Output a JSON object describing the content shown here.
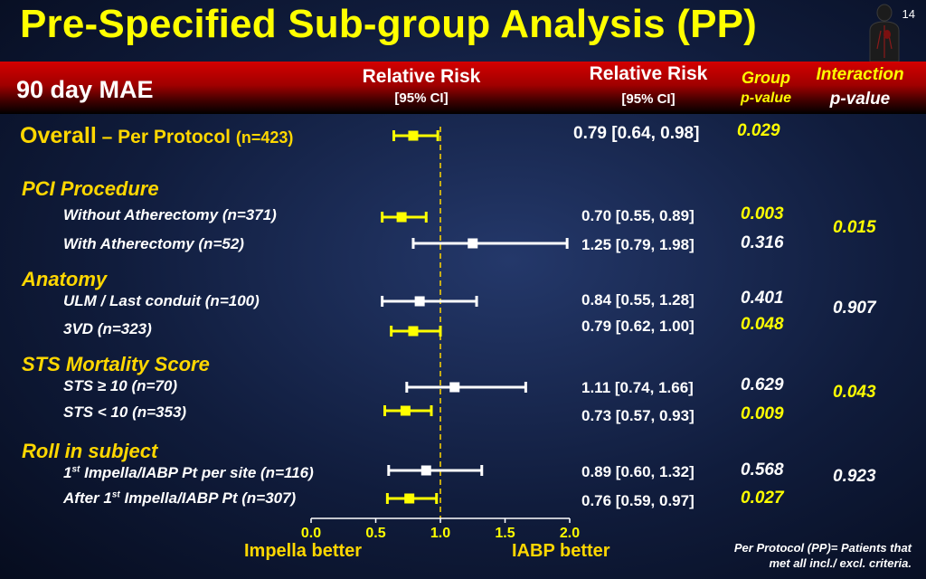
{
  "slide": {
    "title": "Pre-Specified Sub-group Analysis (PP)",
    "slide_number": "14",
    "metric_label": "90 day MAE",
    "footnote_line1": "Per Protocol (PP)= Patients that",
    "footnote_line2": "met all incl./ excl. criteria."
  },
  "header": {
    "rr_plot_title": "Relative Risk",
    "rr_plot_ci": "[95% CI]",
    "rr_col_title": "Relative Risk",
    "rr_col_ci": "[95% CI]",
    "group_title": "Group",
    "group_sub": "p-value",
    "interaction_title": "Interaction",
    "interaction_sub": "p-value"
  },
  "overall": {
    "label_main": "Overall",
    "label_dash": " – Per Protocol ",
    "label_n": "(n=423)",
    "rr_text": "0.79 [0.64, 0.98]",
    "group_p": "0.029"
  },
  "sections": [
    {
      "title": "PCI Procedure",
      "interaction_p": "0.015",
      "interaction_sig": true
    },
    {
      "title": "Anatomy",
      "interaction_p": "0.907",
      "interaction_sig": false
    },
    {
      "title": "STS Mortality Score",
      "interaction_p": "0.043",
      "interaction_sig": true
    },
    {
      "title": "Roll in subject",
      "interaction_p": "0.923",
      "interaction_sig": false
    }
  ],
  "rows": [
    {
      "label": "Without Atherectomy (n=371)",
      "rr_text": "0.70 [0.55, 0.89]",
      "group_p": "0.003"
    },
    {
      "label": "With Atherectomy (n=52)",
      "rr_text": "1.25 [0.79, 1.98]",
      "group_p": "0.316"
    },
    {
      "label": "ULM / Last conduit (n=100)",
      "rr_text": "0.84 [0.55, 1.28]",
      "group_p": "0.401"
    },
    {
      "label": "3VD (n=323)",
      "rr_text": "0.79 [0.62, 1.00]",
      "group_p": "0.048"
    },
    {
      "label": "STS ≥ 10 (n=70)",
      "rr_text": "1.11 [0.74, 1.66]",
      "group_p": "0.629"
    },
    {
      "label": "STS < 10 (n=353)",
      "rr_text": "0.73 [0.57, 0.93]",
      "group_p": "0.009"
    },
    {
      "label_pre": "1",
      "label_sup": "st",
      "label_post": " Impella/IABP Pt per site (n=116)",
      "rr_text": "0.89 [0.60, 1.32]",
      "group_p": "0.568"
    },
    {
      "label_pre": "After 1",
      "label_sup": "st",
      "label_post": " Impella/IABP Pt (n=307)",
      "rr_text": "0.76 [0.59, 0.97]",
      "group_p": "0.027"
    }
  ],
  "axis_labels": {
    "left": "Impella better",
    "right": "IABP better"
  },
  "chart_data": {
    "type": "forest",
    "title": "Pre-Specified Sub-group Analysis (PP)",
    "xlabel_left": "Impella better",
    "xlabel_right": "IABP better",
    "xlim": [
      0.0,
      2.0
    ],
    "ticks": [
      "0.0",
      "0.5",
      "1.0",
      "1.5",
      "2.0"
    ],
    "reference_line": 1.0,
    "colors": {
      "significant": "#ffff00",
      "nonsignificant": "#ffffff",
      "reference": "#ffd700"
    },
    "points": [
      {
        "name": "Overall",
        "rr": 0.79,
        "lo": 0.64,
        "hi": 0.98,
        "significant": true
      },
      {
        "name": "Without Atherectomy",
        "rr": 0.7,
        "lo": 0.55,
        "hi": 0.89,
        "significant": true
      },
      {
        "name": "With Atherectomy",
        "rr": 1.25,
        "lo": 0.79,
        "hi": 1.98,
        "significant": false
      },
      {
        "name": "ULM / Last conduit",
        "rr": 0.84,
        "lo": 0.55,
        "hi": 1.28,
        "significant": false
      },
      {
        "name": "3VD",
        "rr": 0.79,
        "lo": 0.62,
        "hi": 1.0,
        "significant": true
      },
      {
        "name": "STS ≥ 10",
        "rr": 1.11,
        "lo": 0.74,
        "hi": 1.66,
        "significant": false
      },
      {
        "name": "STS < 10",
        "rr": 0.73,
        "lo": 0.57,
        "hi": 0.93,
        "significant": true
      },
      {
        "name": "1st Impella/IABP Pt per site",
        "rr": 0.89,
        "lo": 0.6,
        "hi": 1.32,
        "significant": false
      },
      {
        "name": "After 1st Impella/IABP Pt",
        "rr": 0.76,
        "lo": 0.59,
        "hi": 0.97,
        "significant": true
      }
    ]
  }
}
